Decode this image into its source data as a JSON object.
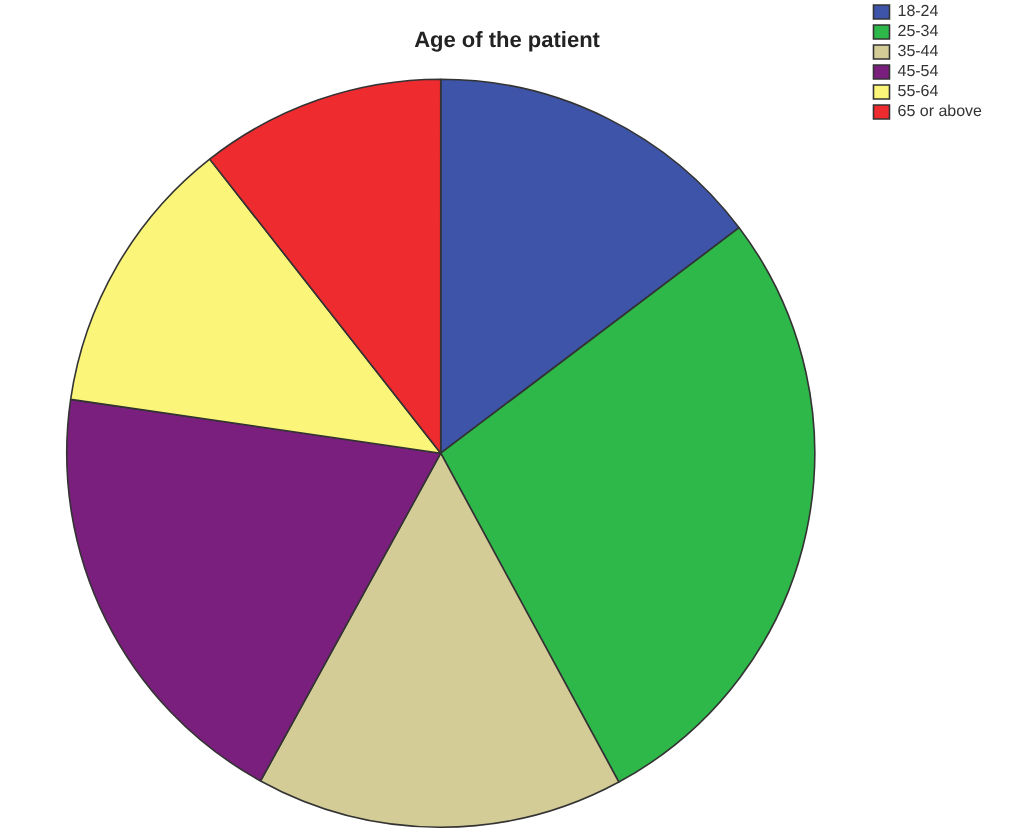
{
  "chart_data": {
    "type": "pie",
    "title": "Age of the patient",
    "categories": [
      "18-24",
      "25-34",
      "35-44",
      "45-54",
      "55-64",
      "65 or above"
    ],
    "values": [
      14.7,
      27.4,
      15.9,
      19.3,
      12.1,
      10.6
    ],
    "colors": [
      "#3d54a8",
      "#2fb84a",
      "#d4cc97",
      "#7a1f7d",
      "#fbf57a",
      "#ee2b2f"
    ],
    "legend": "top right"
  }
}
